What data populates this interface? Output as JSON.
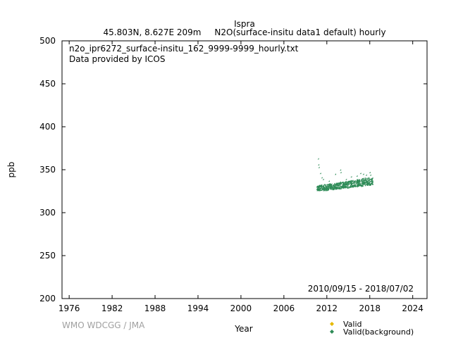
{
  "title": {
    "station": "Ispra",
    "location": "45.803N, 8.627E 209m",
    "parameter": "N2O(surface-insitu data1 default) hourly"
  },
  "annotation": {
    "filename": "n2o_ipr6272_surface-insitu_162_9999-9999_hourly.txt",
    "provider": "Data provided by ICOS",
    "period": "2010/09/15 - 2018/07/02"
  },
  "credit": "WMO WDCGG / JMA",
  "chart_data": {
    "type": "scatter",
    "xlabel": "Year",
    "ylabel": "ppb",
    "xlim": [
      1975,
      2026
    ],
    "ylim": [
      200,
      500
    ],
    "x_ticks": [
      "1976",
      "1982",
      "1988",
      "1994",
      "2000",
      "2006",
      "2012",
      "2018",
      "2024"
    ],
    "y_ticks": [
      "200",
      "250",
      "300",
      "350",
      "400",
      "450",
      "500"
    ],
    "grid": false,
    "legend_position": "bottom-right",
    "series": [
      {
        "name": "Valid",
        "color": "#e6b800",
        "marker": "diamond",
        "points": []
      },
      {
        "name": "Valid(background)",
        "color": "#2e8b57",
        "marker": "diamond",
        "band": [
          [
            2010.7,
            325,
            330
          ],
          [
            2011.0,
            325,
            331
          ],
          [
            2011.5,
            325,
            332
          ],
          [
            2012.0,
            325,
            332
          ],
          [
            2012.5,
            326,
            333
          ],
          [
            2013.0,
            326,
            333
          ],
          [
            2013.5,
            327,
            334
          ],
          [
            2014.0,
            327,
            335
          ],
          [
            2014.5,
            328,
            335
          ],
          [
            2015.0,
            328,
            336
          ],
          [
            2015.5,
            329,
            337
          ],
          [
            2016.0,
            329,
            338
          ],
          [
            2016.5,
            330,
            338
          ],
          [
            2017.0,
            330,
            339
          ],
          [
            2017.5,
            331,
            340
          ],
          [
            2018.0,
            331,
            340
          ],
          [
            2018.5,
            332,
            340
          ]
        ],
        "outliers": [
          [
            2010.9,
            362
          ],
          [
            2010.95,
            355
          ],
          [
            2011.0,
            352
          ],
          [
            2011.2,
            345
          ],
          [
            2011.4,
            340
          ],
          [
            2011.6,
            338
          ],
          [
            2012.4,
            336
          ],
          [
            2013.3,
            344
          ],
          [
            2014.0,
            349
          ],
          [
            2014.05,
            346
          ],
          [
            2014.8,
            338
          ],
          [
            2015.5,
            341
          ],
          [
            2016.3,
            342
          ],
          [
            2016.8,
            345
          ],
          [
            2017.2,
            344
          ],
          [
            2017.6,
            343
          ],
          [
            2018.1,
            346
          ],
          [
            2018.2,
            343
          ]
        ]
      }
    ]
  }
}
